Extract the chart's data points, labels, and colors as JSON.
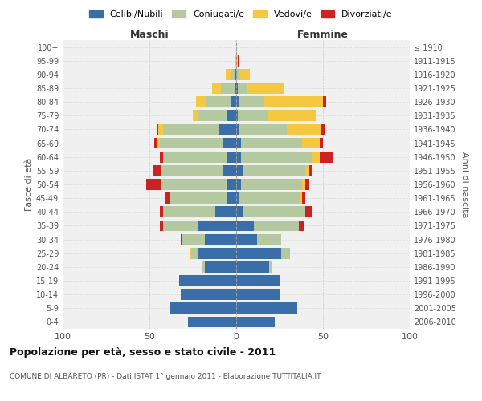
{
  "age_groups": [
    "0-4",
    "5-9",
    "10-14",
    "15-19",
    "20-24",
    "25-29",
    "30-34",
    "35-39",
    "40-44",
    "45-49",
    "50-54",
    "55-59",
    "60-64",
    "65-69",
    "70-74",
    "75-79",
    "80-84",
    "85-89",
    "90-94",
    "95-99",
    "100+"
  ],
  "birth_years": [
    "2006-2010",
    "2001-2005",
    "1996-2000",
    "1991-1995",
    "1986-1990",
    "1981-1985",
    "1976-1980",
    "1971-1975",
    "1966-1970",
    "1961-1965",
    "1956-1960",
    "1951-1955",
    "1946-1950",
    "1941-1945",
    "1936-1940",
    "1931-1935",
    "1926-1930",
    "1921-1925",
    "1916-1920",
    "1911-1915",
    "≤ 1910"
  ],
  "male": {
    "celibi": [
      28,
      38,
      32,
      33,
      18,
      22,
      18,
      22,
      12,
      5,
      5,
      8,
      5,
      8,
      10,
      5,
      3,
      1,
      1,
      0,
      0
    ],
    "coniugati": [
      0,
      0,
      0,
      0,
      2,
      4,
      13,
      20,
      30,
      33,
      38,
      35,
      37,
      36,
      32,
      17,
      14,
      8,
      2,
      0,
      0
    ],
    "vedovi": [
      0,
      0,
      0,
      0,
      0,
      1,
      0,
      0,
      0,
      0,
      0,
      0,
      0,
      2,
      3,
      3,
      6,
      5,
      3,
      1,
      0
    ],
    "divorziati": [
      0,
      0,
      0,
      0,
      0,
      0,
      1,
      2,
      2,
      3,
      9,
      5,
      2,
      1,
      1,
      0,
      0,
      0,
      0,
      0,
      0
    ]
  },
  "female": {
    "nubili": [
      22,
      35,
      25,
      25,
      19,
      26,
      12,
      10,
      4,
      2,
      3,
      4,
      3,
      3,
      2,
      1,
      2,
      1,
      0,
      0,
      0
    ],
    "coniugate": [
      0,
      0,
      0,
      0,
      2,
      5,
      14,
      26,
      36,
      35,
      35,
      36,
      41,
      35,
      27,
      17,
      14,
      5,
      2,
      0,
      0
    ],
    "vedove": [
      0,
      0,
      0,
      0,
      0,
      0,
      0,
      0,
      0,
      1,
      2,
      2,
      4,
      10,
      20,
      28,
      34,
      22,
      6,
      1,
      0
    ],
    "divorziate": [
      0,
      0,
      0,
      0,
      0,
      0,
      0,
      3,
      4,
      2,
      2,
      2,
      8,
      2,
      2,
      0,
      2,
      0,
      0,
      1,
      0
    ]
  },
  "colors": {
    "celibi": "#3a6ea8",
    "coniugati": "#b5c9a0",
    "vedovi": "#f5c842",
    "divorziati": "#cc2222"
  },
  "xlim": 100,
  "title": "Popolazione per età, sesso e stato civile - 2011",
  "subtitle": "COMUNE DI ALBARETO (PR) - Dati ISTAT 1° gennaio 2011 - Elaborazione TUTTITALIA.IT",
  "xlabel_left": "Maschi",
  "xlabel_right": "Femmine",
  "ylabel_left": "Fasce di età",
  "ylabel_right": "Anni di nascita",
  "legend_labels": [
    "Celibi/Nubili",
    "Coniugati/e",
    "Vedovi/e",
    "Divorziati/e"
  ],
  "bg_color": "#f0f0f0"
}
